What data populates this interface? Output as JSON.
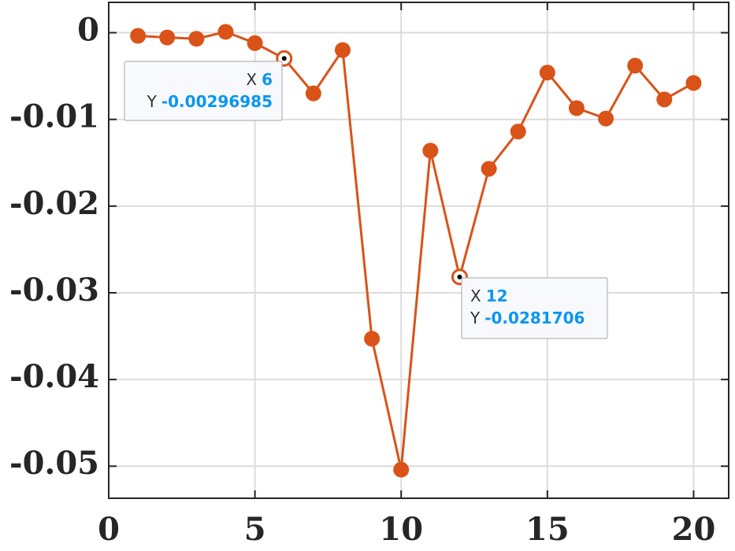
{
  "chart_data": {
    "type": "line",
    "x": [
      1,
      2,
      3,
      4,
      5,
      6,
      7,
      8,
      9,
      10,
      11,
      12,
      13,
      14,
      15,
      16,
      17,
      18,
      19,
      20
    ],
    "series": [
      {
        "color": "#d95319",
        "values": [
          -0.00036,
          -0.00055,
          -0.0007,
          0.0001,
          -0.0012,
          -0.00296985,
          -0.007,
          -0.002,
          -0.0353,
          -0.0504,
          -0.0136,
          -0.0281706,
          -0.0157,
          -0.0114,
          -0.0046,
          -0.0087,
          -0.0099,
          -0.0038,
          -0.0077,
          -0.0058
        ]
      }
    ],
    "xlim": [
      0,
      21.2
    ],
    "xticks": [
      0,
      5,
      10,
      15,
      20
    ],
    "ylim": [
      -0.0537,
      0.0035
    ],
    "yticks": [
      0,
      -0.01,
      -0.02,
      -0.03,
      -0.04,
      -0.05
    ],
    "grid": true,
    "datatips": [
      {
        "x_label": "X",
        "x": 6,
        "y_label": "Y",
        "y": -0.00296985
      },
      {
        "x_label": "X",
        "x": 12,
        "y_label": "Y",
        "y": -0.0281706
      }
    ]
  }
}
